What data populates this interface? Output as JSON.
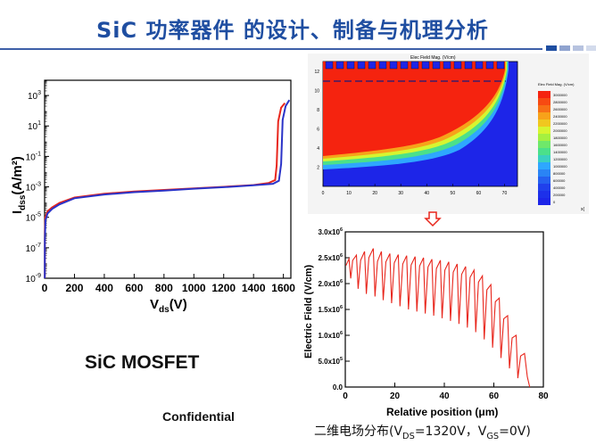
{
  "slide": {
    "title": "SiC 功率器件 的设计、制备与机理分析",
    "device_label": "SiC MOSFET",
    "footer": "Confidential",
    "sim_caption": {
      "prefix": "二维电场分布(V",
      "ds_sub": "DS",
      "ds_value": "=1320V，V",
      "gs_sub": "GS",
      "gs_value": "=0V)"
    },
    "colors": {
      "title": "#1f4ea1",
      "deco": [
        "#1f4ea1",
        "#8fa3cf",
        "#b7c3df",
        "#d3dbec"
      ]
    }
  },
  "chart_data": [
    {
      "type": "line",
      "ylabel_main": "I",
      "ylabel_sub": "dss",
      "ylabel_unit": "(A/m²)",
      "xlabel_main": "V",
      "xlabel_sub": "ds",
      "xlabel_unit": "(V)",
      "y_scale": "log",
      "xlim": [
        0,
        1650
      ],
      "ylim_exp": [
        -9,
        4
      ],
      "x_ticks": [
        "0",
        "200",
        "400",
        "600",
        "800",
        "1000",
        "1200",
        "1400",
        "1600"
      ],
      "y_tick_exponents": [
        "3",
        "1",
        "-1",
        "-3",
        "-5",
        "-7",
        "-9"
      ],
      "series": [
        {
          "color": "#e8261c",
          "points": [
            [
              1,
              -9
            ],
            [
              2,
              -6
            ],
            [
              5,
              -5
            ],
            [
              20,
              -4.6
            ],
            [
              50,
              -4.35
            ],
            [
              100,
              -4.05
            ],
            [
              200,
              -3.7
            ],
            [
              400,
              -3.45
            ],
            [
              600,
              -3.3
            ],
            [
              800,
              -3.2
            ],
            [
              1000,
              -3.1
            ],
            [
              1200,
              -3.0
            ],
            [
              1400,
              -2.88
            ],
            [
              1500,
              -2.75
            ],
            [
              1545,
              -2.55
            ],
            [
              1555,
              -1.6
            ],
            [
              1565,
              1.3
            ],
            [
              1585,
              2.2
            ],
            [
              1610,
              2.5
            ]
          ]
        },
        {
          "color": "#2a33c8",
          "points": [
            [
              1,
              -9
            ],
            [
              2,
              -6.5
            ],
            [
              6,
              -5.2
            ],
            [
              20,
              -4.75
            ],
            [
              50,
              -4.45
            ],
            [
              100,
              -4.15
            ],
            [
              200,
              -3.75
            ],
            [
              400,
              -3.5
            ],
            [
              600,
              -3.35
            ],
            [
              800,
              -3.25
            ],
            [
              1000,
              -3.12
            ],
            [
              1200,
              -3.02
            ],
            [
              1400,
              -2.9
            ],
            [
              1530,
              -2.8
            ],
            [
              1570,
              -2.6
            ],
            [
              1585,
              -1.5
            ],
            [
              1595,
              1.4
            ],
            [
              1615,
              2.3
            ],
            [
              1640,
              2.7
            ]
          ]
        }
      ]
    },
    {
      "type": "heatmap",
      "title": "Elec Field Mag. (V/cm)",
      "legend_title": "Elec Field Mag. (V/cm)",
      "x_ticks": [
        "0",
        "10",
        "20",
        "30",
        "40",
        "50",
        "60",
        "70"
      ],
      "y_ticks": [
        "12",
        "10",
        "8",
        "6",
        "4",
        "2"
      ],
      "x_unit": "x(",
      "legend_values": [
        "3000000",
        "2800000",
        "2600000",
        "2400000",
        "2200000",
        "2000000",
        "1800000",
        "1600000",
        "1400000",
        "1200000",
        "1000000",
        "800000",
        "600000",
        "400000",
        "200000",
        "0"
      ]
    },
    {
      "type": "line",
      "ylabel": "Electric Field (V/cm)",
      "xlabel": "Relative position (μm)",
      "xlim": [
        0,
        80
      ],
      "ylim": [
        0,
        3000000
      ],
      "x_ticks": [
        "0",
        "20",
        "40",
        "60",
        "80"
      ],
      "y_ticks": [
        {
          "mant": "3.0x10",
          "exp": "6"
        },
        {
          "mant": "2.5x10",
          "exp": "6"
        },
        {
          "mant": "2.0x10",
          "exp": "6"
        },
        {
          "mant": "1.5x10",
          "exp": "6"
        },
        {
          "mant": "1.0x10",
          "exp": "6"
        },
        {
          "mant": "5.0x10",
          "exp": "5"
        },
        {
          "mant": "0.0",
          "exp": ""
        }
      ],
      "series": [
        {
          "color": "#e8261c"
        }
      ]
    }
  ]
}
